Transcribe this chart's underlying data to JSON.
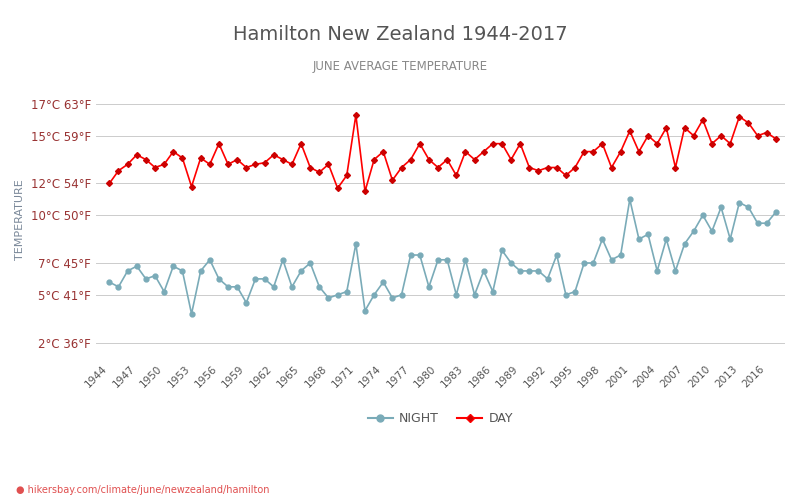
{
  "title": "Hamilton New Zealand 1944-2017",
  "subtitle": "JUNE AVERAGE TEMPERATURE",
  "ylabel": "TEMPERATURE",
  "xlabel_url": "hikersbay.com/climate/june/newzealand/hamilton",
  "yticks_c": [
    2,
    5,
    7,
    10,
    12,
    15,
    17
  ],
  "yticks_f": [
    36,
    41,
    45,
    50,
    54,
    59,
    63
  ],
  "years": [
    1944,
    1945,
    1946,
    1947,
    1948,
    1949,
    1950,
    1951,
    1952,
    1953,
    1954,
    1955,
    1956,
    1957,
    1958,
    1959,
    1960,
    1961,
    1962,
    1963,
    1964,
    1965,
    1966,
    1967,
    1968,
    1969,
    1970,
    1971,
    1972,
    1973,
    1974,
    1975,
    1976,
    1977,
    1978,
    1979,
    1980,
    1981,
    1982,
    1983,
    1984,
    1985,
    1986,
    1987,
    1988,
    1989,
    1990,
    1991,
    1992,
    1993,
    1994,
    1995,
    1996,
    1997,
    1998,
    1999,
    2000,
    2001,
    2002,
    2003,
    2004,
    2005,
    2006,
    2007,
    2008,
    2009,
    2010,
    2011,
    2012,
    2013,
    2014,
    2015,
    2016,
    2017
  ],
  "day_temps": [
    12.0,
    12.8,
    13.2,
    13.8,
    13.5,
    13.0,
    13.2,
    14.0,
    13.6,
    11.8,
    13.6,
    13.2,
    14.5,
    13.2,
    13.5,
    13.0,
    13.2,
    13.3,
    13.8,
    13.5,
    13.2,
    14.5,
    13.0,
    12.7,
    13.2,
    11.7,
    12.5,
    16.3,
    11.5,
    13.5,
    14.0,
    12.2,
    13.0,
    13.5,
    14.5,
    13.5,
    13.0,
    13.5,
    12.5,
    14.0,
    13.5,
    14.0,
    14.5,
    14.5,
    13.5,
    14.5,
    13.0,
    12.8,
    13.0,
    13.0,
    12.5,
    13.0,
    14.0,
    14.0,
    14.5,
    13.0,
    14.0,
    15.3,
    14.0,
    15.0,
    14.5,
    15.5,
    13.0,
    15.5,
    15.0,
    16.0,
    14.5,
    15.0,
    14.5,
    16.2,
    15.8,
    15.0,
    15.2,
    14.8
  ],
  "night_temps": [
    5.8,
    5.5,
    6.5,
    6.8,
    6.0,
    6.2,
    5.2,
    6.8,
    6.5,
    3.8,
    6.5,
    7.2,
    6.0,
    5.5,
    5.5,
    4.5,
    6.0,
    6.0,
    5.5,
    7.2,
    5.5,
    6.5,
    7.0,
    5.5,
    4.8,
    5.0,
    5.2,
    8.2,
    4.0,
    5.0,
    5.8,
    4.8,
    5.0,
    7.5,
    7.5,
    5.5,
    7.2,
    7.2,
    5.0,
    7.2,
    5.0,
    6.5,
    5.2,
    7.8,
    7.0,
    6.5,
    6.5,
    6.5,
    6.0,
    7.5,
    5.0,
    5.2,
    7.0,
    7.0,
    8.5,
    7.2,
    7.5,
    11.0,
    8.5,
    8.8,
    6.5,
    8.5,
    6.5,
    8.2,
    9.0,
    10.0,
    9.0,
    10.5,
    8.5,
    10.8,
    10.5,
    9.5,
    9.5,
    10.2
  ],
  "day_color": "#ff0000",
  "night_color": "#7aabb8",
  "day_marker": "D",
  "night_marker": "o",
  "day_marker_color": "#cc0000",
  "night_marker_color": "#5a9aaa",
  "background_color": "#ffffff",
  "grid_color": "#cccccc",
  "title_color": "#555555",
  "subtitle_color": "#888888",
  "ylabel_color": "#7a8899",
  "ytick_color": "#993333",
  "xtick_color": "#555555",
  "legend_night": "NIGHT",
  "legend_day": "DAY",
  "xtick_years": [
    1944,
    1947,
    1950,
    1953,
    1956,
    1959,
    1962,
    1965,
    1968,
    1971,
    1974,
    1977,
    1980,
    1983,
    1986,
    1989,
    1992,
    1995,
    1998,
    2001,
    2004,
    2007,
    2010,
    2013,
    2016
  ]
}
